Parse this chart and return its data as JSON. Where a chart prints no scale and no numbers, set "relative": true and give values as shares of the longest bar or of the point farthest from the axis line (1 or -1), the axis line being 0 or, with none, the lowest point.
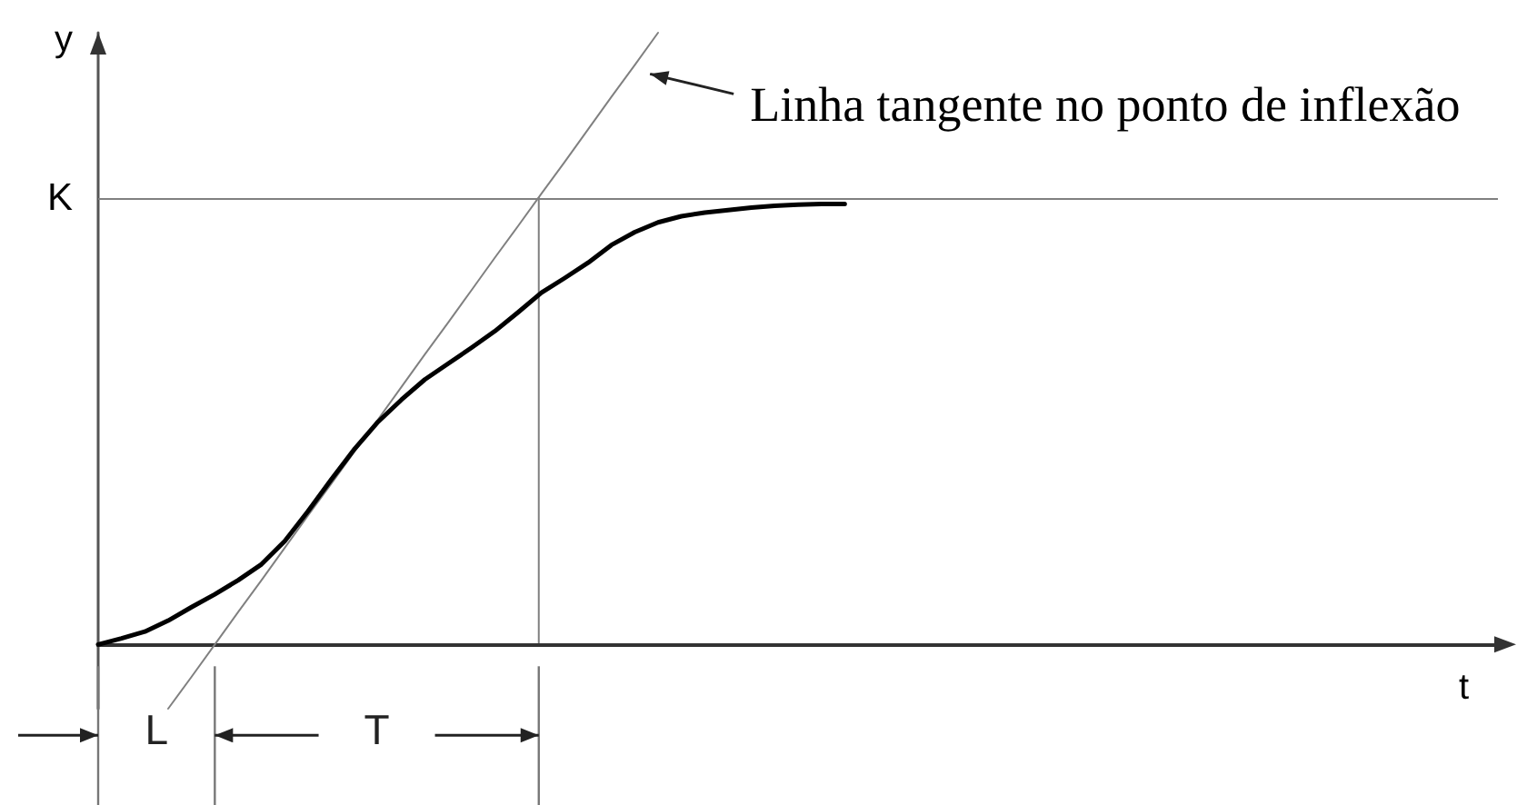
{
  "chart_data": {
    "type": "line",
    "relative": true,
    "xlabel": "t",
    "ylabel": "y",
    "marker": "none",
    "categories": [
      null,
      null,
      null,
      null,
      null,
      null,
      null,
      null,
      null,
      null,
      null,
      null,
      null,
      null,
      null,
      null,
      null,
      null,
      null,
      null,
      null,
      null,
      null,
      null,
      null,
      null,
      null,
      null,
      null,
      null,
      null,
      null,
      null,
      null,
      null,
      null,
      null,
      null,
      null,
      null,
      null,
      null,
      null,
      null,
      null,
      null,
      null,
      null,
      null,
      null,
      null,
      null,
      null,
      null,
      null,
      null,
      null,
      null,
      null,
      null,
      null
    ],
    "series": [
      {
        "color": "#000000",
        "values": [
          0,
          0.01,
          0.021,
          0.039,
          0.061,
          0.082,
          0.105,
          0.131,
          0.169,
          0.218,
          0.27,
          0.32,
          0.364,
          0.4,
          0.433,
          0.459,
          0.485,
          0.512,
          0.543,
          0.575,
          0.599,
          0.624,
          0.653,
          0.674,
          0.69,
          0.7,
          0.706,
          0.71,
          0.714,
          0.717,
          0.719,
          0.72,
          0.72,
          null,
          null,
          null,
          null,
          null,
          null,
          null,
          null,
          null,
          null,
          null,
          null,
          null,
          null,
          null,
          null,
          null,
          null,
          null,
          null,
          null,
          null,
          null,
          null,
          null,
          null,
          null,
          null
        ]
      },
      {
        "name": "Linha tangente no ponto de inflexão",
        "color": "#808080",
        "values": [
          null,
          null,
          null,
          -0.105,
          -0.053,
          0,
          0.053,
          0.105,
          0.158,
          0.211,
          0.263,
          0.316,
          0.368,
          0.421,
          0.474,
          0.526,
          0.579,
          0.632,
          0.684,
          0.737,
          0.789,
          0.842,
          0.895,
          0.947,
          1,
          null,
          null,
          null,
          null,
          null,
          null,
          null,
          null,
          null,
          null,
          null,
          null,
          null,
          null,
          null,
          null,
          null,
          null,
          null,
          null,
          null,
          null,
          null,
          null,
          null,
          null,
          null,
          null,
          null,
          null,
          null,
          null,
          null,
          null,
          null,
          null
        ]
      }
    ],
    "ref_lines": [
      {
        "axis": "y",
        "value": 0.731,
        "label": "K",
        "color": "#808080"
      }
    ],
    "annotations": [
      "L",
      "T"
    ]
  }
}
